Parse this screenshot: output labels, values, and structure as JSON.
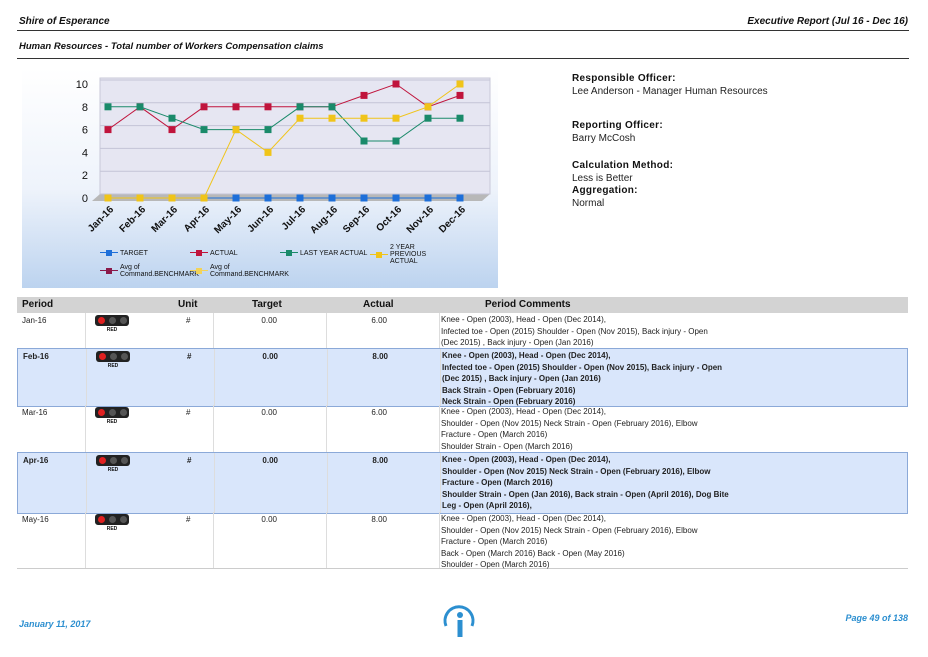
{
  "header": {
    "organisation": "Shire of Esperance",
    "report": "Executive Report (Jul 16 - Dec 16)",
    "subtitle": "Human Resources - Total number of Workers Compensation claims"
  },
  "chart_data": {
    "type": "line",
    "categories": [
      "Jan-16",
      "Feb-16",
      "Mar-16",
      "Apr-16",
      "May-16",
      "Jun-16",
      "Jul-16",
      "Aug-16",
      "Sep-16",
      "Oct-16",
      "Nov-16",
      "Dec-16"
    ],
    "series": [
      {
        "name": "TARGET",
        "color": "#1e6fd9",
        "values": [
          0,
          0,
          0,
          0,
          0,
          0,
          0,
          0,
          0,
          0,
          0,
          0
        ]
      },
      {
        "name": "ACTUAL",
        "color": "#c0143c",
        "values": [
          6,
          8,
          6,
          8,
          8,
          8,
          8,
          8,
          9,
          10,
          8,
          9
        ]
      },
      {
        "name": "LAST YEAR ACTUAL",
        "color": "#1a8a6a",
        "values": [
          8,
          8,
          7,
          6,
          6,
          6,
          8,
          8,
          5,
          5,
          7,
          7
        ]
      },
      {
        "name": "2 YEAR PREVIOUS ACTUAL",
        "color": "#f0c419",
        "values": [
          0,
          0,
          0,
          0,
          6,
          4,
          7,
          7,
          7,
          7,
          8,
          10
        ]
      },
      {
        "name": "Avg of Command.BENCHMARK",
        "color": "#8b1a4a",
        "values": [
          null,
          null,
          null,
          null,
          null,
          null,
          null,
          null,
          null,
          null,
          null,
          null
        ]
      },
      {
        "name": "Avg of Command.BENCHMARK",
        "color": "#f2d35a",
        "values": [
          null,
          null,
          null,
          null,
          null,
          null,
          null,
          null,
          null,
          null,
          null,
          null
        ]
      }
    ],
    "ylim": [
      0,
      10
    ],
    "yticks": [
      0,
      2,
      4,
      6,
      8,
      10
    ],
    "grid": true
  },
  "info": [
    {
      "label": "Responsible Officer:",
      "value": "Lee Anderson - Manager Human Resources"
    },
    {
      "label": "Reporting Officer:",
      "value": "Barry McCosh"
    },
    {
      "label": "Calculation Method:",
      "value": "Less is Better"
    },
    {
      "label": "Aggregation:",
      "value": "Normal"
    }
  ],
  "table": {
    "columns": [
      "Period",
      "Unit",
      "Target",
      "Actual",
      "Period Comments"
    ],
    "rows": [
      {
        "period": "Jan-16",
        "status": "RED",
        "unit": "#",
        "target": "0.00",
        "actual": "6.00",
        "comments": [
          "Knee - Open (2003), Head - Open (Dec 2014),",
          "Infected toe - Open (2015) Shoulder - Open (Nov 2015), Back injury - Open",
          "(Dec 2015) , Back injury - Open (Jan 2016)"
        ]
      },
      {
        "period": "Feb-16",
        "status": "RED",
        "unit": "#",
        "target": "0.00",
        "actual": "8.00",
        "comments": [
          "Knee - Open (2003), Head - Open (Dec 2014),",
          "Infected toe - Open (2015) Shoulder - Open (Nov 2015), Back injury - Open",
          "(Dec 2015) , Back injury - Open (Jan 2016)",
          "Back Strain - Open (February 2016)",
          "Neck Strain - Open (February 2016)"
        ]
      },
      {
        "period": "Mar-16",
        "status": "RED",
        "unit": "#",
        "target": "0.00",
        "actual": "6.00",
        "comments": [
          "Knee - Open (2003), Head - Open (Dec 2014),",
          "Shoulder - Open (Nov 2015) Neck Strain - Open (February 2016), Elbow",
          "Fracture - Open (March 2016)",
          "Shoulder Strain - Open (March 2016)"
        ]
      },
      {
        "period": "Apr-16",
        "status": "RED",
        "unit": "#",
        "target": "0.00",
        "actual": "8.00",
        "comments": [
          "Knee - Open (2003), Head - Open (Dec 2014),",
          "Shoulder - Open (Nov 2015) Neck Strain - Open (February 2016), Elbow",
          "Fracture - Open (March 2016)",
          "Shoulder Strain - Open (Jan 2016), Back strain - Open (April 2016), Dog Bite",
          "Leg - Open (April 2016),"
        ]
      },
      {
        "period": "May-16",
        "status": "RED",
        "unit": "#",
        "target": "0.00",
        "actual": "8.00",
        "comments": [
          "Knee - Open (2003), Head - Open (Dec 2014),",
          "Shoulder - Open (Nov 2015) Neck Strain - Open (February 2016), Elbow",
          "Fracture - Open (March 2016)",
          "Back - Open (March 2016) Back - Open (May 2016)",
          "Shoulder - Open (March 2016)"
        ]
      }
    ]
  },
  "footer": {
    "date": "January 11, 2017",
    "page": "Page 49 of 138"
  }
}
